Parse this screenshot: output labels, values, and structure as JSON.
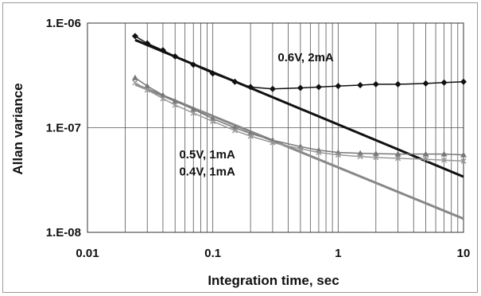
{
  "chart_data": {
    "type": "scatter",
    "xscale": "log",
    "yscale": "log",
    "xlim": [
      0.01,
      10
    ],
    "ylim": [
      1e-08,
      1e-06
    ],
    "xlabel": "Integration time, sec",
    "ylabel": "Allan variance",
    "x_tick_labels": [
      "0.01",
      "0.1",
      "1",
      "10"
    ],
    "y_tick_labels": [
      "1.E-06",
      "1.E-07",
      "1.E-08"
    ],
    "grid": "vertical minor lines from 0.02 to 10; horizontal line at 1.E-07",
    "annotations": [
      {
        "text": "0.6V, 2mA",
        "x": 0.33,
        "y": 4.3e-07
      },
      {
        "text": "0.5V, 1mA",
        "x": 0.054,
        "y": 5.1e-08
      },
      {
        "text": "0.4V, 1mA",
        "x": 0.054,
        "y": 3.5e-08
      }
    ],
    "series": [
      {
        "name": "0.6V, 2mA",
        "marker": "diamond",
        "color": "#111111",
        "x": [
          0.024,
          0.03,
          0.04,
          0.05,
          0.07,
          0.1,
          0.15,
          0.2,
          0.3,
          0.5,
          0.7,
          1,
          1.5,
          2,
          3,
          5,
          7,
          10
        ],
        "y": [
          7.5e-07,
          6.4e-07,
          5.5e-07,
          4.8e-07,
          4e-07,
          3.3e-07,
          2.75e-07,
          2.45e-07,
          2.35e-07,
          2.4e-07,
          2.45e-07,
          2.5e-07,
          2.55e-07,
          2.6e-07,
          2.6e-07,
          2.65e-07,
          2.7e-07,
          2.75e-07
        ]
      },
      {
        "name": "0.5V, 1mA",
        "marker": "triangle",
        "color": "#777777",
        "x": [
          0.024,
          0.03,
          0.04,
          0.05,
          0.07,
          0.1,
          0.15,
          0.2,
          0.3,
          0.5,
          0.7,
          1,
          1.5,
          2,
          3,
          5,
          7,
          10
        ],
        "y": [
          3e-07,
          2.5e-07,
          2.05e-07,
          1.8e-07,
          1.5e-07,
          1.22e-07,
          1e-07,
          8.8e-08,
          7.6e-08,
          6.6e-08,
          6.1e-08,
          5.8e-08,
          5.7e-08,
          5.65e-08,
          5.6e-08,
          5.6e-08,
          5.6e-08,
          5.5e-08
        ]
      },
      {
        "name": "0.4V, 1mA",
        "marker": "x",
        "color": "#999999",
        "x": [
          0.024,
          0.03,
          0.04,
          0.05,
          0.07,
          0.1,
          0.15,
          0.2,
          0.3,
          0.5,
          0.7,
          1,
          1.5,
          2,
          3,
          5,
          7,
          10
        ],
        "y": [
          2.7e-07,
          2.3e-07,
          1.9e-07,
          1.65e-07,
          1.38e-07,
          1.15e-07,
          9.4e-08,
          8.3e-08,
          7.2e-08,
          6.3e-08,
          5.8e-08,
          5.5e-08,
          5.3e-08,
          5.2e-08,
          5.1e-08,
          5e-08,
          4.9e-08,
          4.8e-08
        ]
      }
    ],
    "fit_lines": [
      {
        "color": "#111111",
        "x": [
          0.024,
          10
        ],
        "y": [
          6.9e-07,
          3.4e-08
        ]
      },
      {
        "color": "#888888",
        "x": [
          0.024,
          10
        ],
        "y": [
          2.6e-07,
          1.35e-08
        ]
      }
    ]
  }
}
